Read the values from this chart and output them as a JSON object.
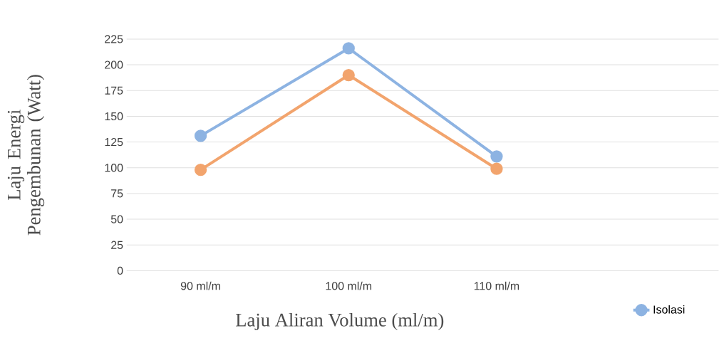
{
  "chart_data": {
    "type": "line",
    "xlabel": "Laju Aliran Volume (ml/m)",
    "ylabel": "Laju Energi Pengembunan (Watt)",
    "categories": [
      "90 ml/m",
      "100 ml/m",
      "110 ml/m",
      null
    ],
    "series": [
      {
        "name": "Isolasi",
        "color": "#8db3e2",
        "values": [
          131,
          216,
          111,
          null
        ]
      },
      {
        "color": "#f2a46d",
        "values": [
          98,
          190,
          99,
          null
        ]
      }
    ],
    "ylim": [
      0,
      225
    ],
    "yticks": [
      0,
      25,
      50,
      75,
      100,
      125,
      150,
      175,
      200,
      225
    ],
    "grid": "y",
    "legend": "bottom right",
    "marker": "circle",
    "line_style": "solid"
  }
}
